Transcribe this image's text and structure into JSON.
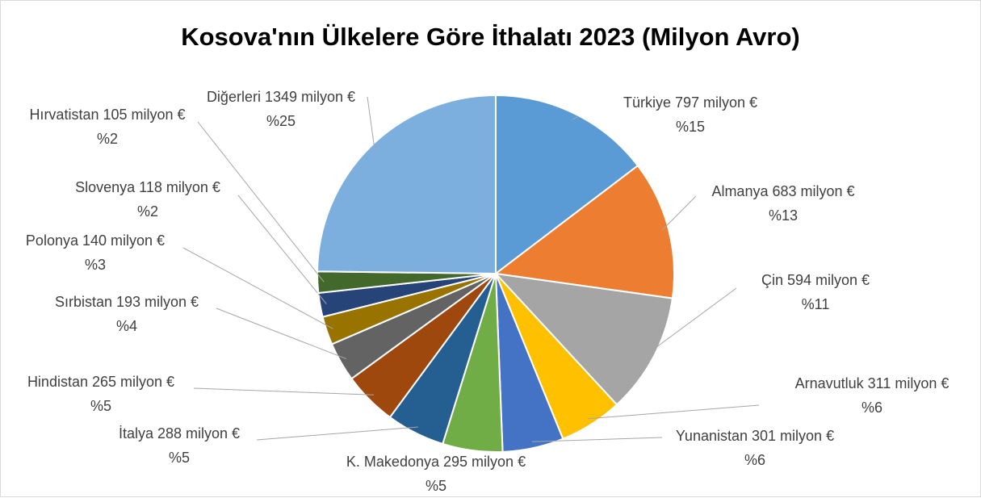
{
  "chart_data": {
    "type": "pie",
    "title": "Kosova'nın Ülkelere Göre İthalatı 2023 (Milyon Avro)",
    "categories": [
      "Türkiye",
      "Almanya",
      "Çin",
      "Arnavutluk",
      "Yunanistan",
      "K. Makedonya",
      "İtalya",
      "Hindistan",
      "Sırbistan",
      "Polonya",
      "Slovenya",
      "Hırvatistan",
      "Diğerleri"
    ],
    "values": [
      797,
      683,
      594,
      311,
      301,
      295,
      288,
      265,
      193,
      140,
      118,
      105,
      1349
    ],
    "value_labels": [
      "797 milyon €",
      "683 milyon €",
      "594 milyon €",
      "311 milyon €",
      "301 milyon €",
      "295 milyon €",
      "288 milyon €",
      "265 milyon €",
      "193 milyon €",
      "140 milyon €",
      "118 milyon €",
      "105 milyon €",
      "1349 milyon €"
    ],
    "percents": [
      15,
      13,
      11,
      6,
      6,
      5,
      5,
      5,
      4,
      3,
      2,
      2,
      25
    ],
    "percent_labels": [
      "%15",
      "%13",
      "%11",
      "%6",
      "%6",
      "%5",
      "%5",
      "%5",
      "%4",
      "%3",
      "%2",
      "%2",
      "%25"
    ],
    "colors": [
      "#5b9bd5",
      "#ed7d31",
      "#a5a5a5",
      "#ffc000",
      "#4472c4",
      "#70ad47",
      "#255e91",
      "#9e480e",
      "#636363",
      "#997300",
      "#264478",
      "#43682b",
      "#7cafdd"
    ]
  }
}
